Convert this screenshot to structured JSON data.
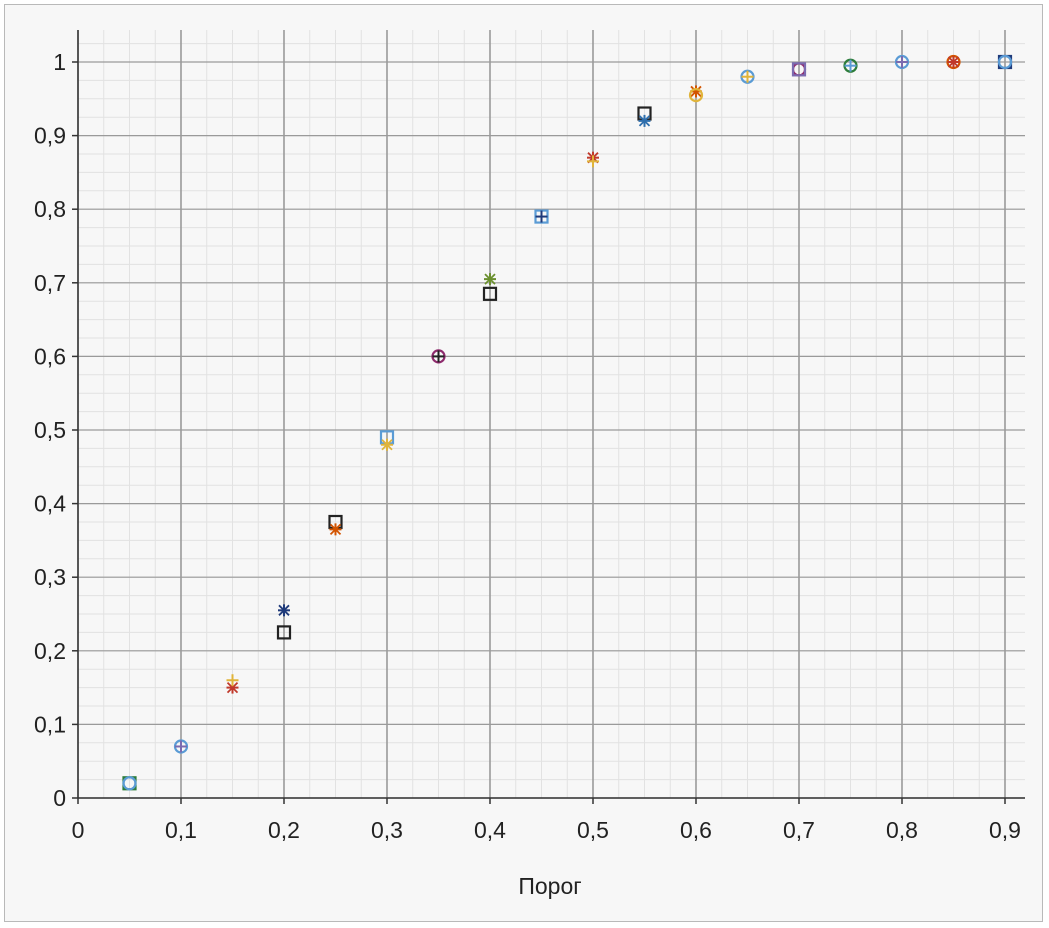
{
  "chart_data": {
    "type": "scatter",
    "title": "",
    "xlabel": "Порог",
    "ylabel": "",
    "xlim": [
      0,
      0.9
    ],
    "ylim": [
      0,
      1
    ],
    "grid": true,
    "x_ticks": [
      "0",
      "0,1",
      "0,2",
      "0,3",
      "0,4",
      "0,5",
      "0,6",
      "0,7",
      "0,8",
      "0,9"
    ],
    "y_ticks": [
      "0",
      "0,1",
      "0,2",
      "0,3",
      "0,4",
      "0,5",
      "0,6",
      "0,7",
      "0,8",
      "0,9",
      "1"
    ],
    "points": [
      {
        "x": 0.05,
        "y": 0.02,
        "marker": "square",
        "color": "#2e7d3a"
      },
      {
        "x": 0.05,
        "y": 0.02,
        "marker": "circle",
        "color": "#5a9bd5"
      },
      {
        "x": 0.1,
        "y": 0.07,
        "marker": "circle",
        "color": "#5a9bd5"
      },
      {
        "x": 0.1,
        "y": 0.07,
        "marker": "plus",
        "color": "#7b6bb0"
      },
      {
        "x": 0.15,
        "y": 0.15,
        "marker": "asterisk",
        "color": "#c0392b"
      },
      {
        "x": 0.15,
        "y": 0.16,
        "marker": "plus",
        "color": "#e0b43a"
      },
      {
        "x": 0.2,
        "y": 0.255,
        "marker": "asterisk",
        "color": "#1f3a7a"
      },
      {
        "x": 0.2,
        "y": 0.225,
        "marker": "square",
        "color": "#222222"
      },
      {
        "x": 0.25,
        "y": 0.375,
        "marker": "square",
        "color": "#222222"
      },
      {
        "x": 0.25,
        "y": 0.365,
        "marker": "asterisk",
        "color": "#d35400"
      },
      {
        "x": 0.3,
        "y": 0.49,
        "marker": "square",
        "color": "#5a9bd5"
      },
      {
        "x": 0.3,
        "y": 0.48,
        "marker": "asterisk",
        "color": "#e0b43a"
      },
      {
        "x": 0.35,
        "y": 0.6,
        "marker": "circle",
        "color": "#8e2b6d"
      },
      {
        "x": 0.35,
        "y": 0.6,
        "marker": "plus",
        "color": "#222222"
      },
      {
        "x": 0.4,
        "y": 0.705,
        "marker": "asterisk",
        "color": "#6a8f2e"
      },
      {
        "x": 0.4,
        "y": 0.685,
        "marker": "square",
        "color": "#222222"
      },
      {
        "x": 0.45,
        "y": 0.79,
        "marker": "square",
        "color": "#5a9bd5"
      },
      {
        "x": 0.45,
        "y": 0.79,
        "marker": "plus",
        "color": "#1f3a7a"
      },
      {
        "x": 0.5,
        "y": 0.87,
        "marker": "asterisk",
        "color": "#c0392b"
      },
      {
        "x": 0.5,
        "y": 0.865,
        "marker": "plus",
        "color": "#e0b43a"
      },
      {
        "x": 0.55,
        "y": 0.93,
        "marker": "square",
        "color": "#222222"
      },
      {
        "x": 0.55,
        "y": 0.92,
        "marker": "asterisk",
        "color": "#2f6fad"
      },
      {
        "x": 0.6,
        "y": 0.96,
        "marker": "asterisk",
        "color": "#d35400"
      },
      {
        "x": 0.6,
        "y": 0.955,
        "marker": "circle",
        "color": "#e0b43a"
      },
      {
        "x": 0.65,
        "y": 0.98,
        "marker": "circle",
        "color": "#5a9bd5"
      },
      {
        "x": 0.65,
        "y": 0.98,
        "marker": "plus",
        "color": "#e0b43a"
      },
      {
        "x": 0.7,
        "y": 0.99,
        "marker": "circle",
        "color": "#8e2b6d"
      },
      {
        "x": 0.7,
        "y": 0.99,
        "marker": "square",
        "color": "#7b6bb0"
      },
      {
        "x": 0.75,
        "y": 0.995,
        "marker": "circle",
        "color": "#2e7d3a"
      },
      {
        "x": 0.75,
        "y": 0.995,
        "marker": "plus",
        "color": "#5a9bd5"
      },
      {
        "x": 0.8,
        "y": 1.0,
        "marker": "circle",
        "color": "#5a9bd5"
      },
      {
        "x": 0.8,
        "y": 1.0,
        "marker": "plus",
        "color": "#7b6bb0"
      },
      {
        "x": 0.85,
        "y": 1.0,
        "marker": "circle",
        "color": "#d35400"
      },
      {
        "x": 0.85,
        "y": 1.0,
        "marker": "asterisk",
        "color": "#c0392b"
      },
      {
        "x": 0.9,
        "y": 1.0,
        "marker": "square",
        "color": "#1f3a7a"
      },
      {
        "x": 0.9,
        "y": 1.0,
        "marker": "circle",
        "color": "#5a9bd5"
      }
    ]
  },
  "colors": {
    "background": "#f7f7f7",
    "grid_major": "#9a9a9a",
    "grid_minor": "#e2e2e2",
    "axis": "#333333"
  }
}
